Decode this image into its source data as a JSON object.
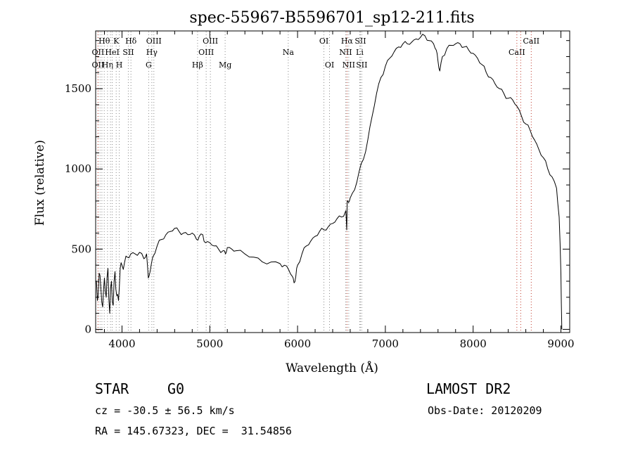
{
  "chart_data": {
    "type": "line",
    "title": "spec-55967-B5596701_sp12-211.fits",
    "xlabel": "Wavelength (Å)",
    "ylabel": "Flux (relative)",
    "xlim": [
      3700,
      9100
    ],
    "ylim": [
      -20,
      1860
    ],
    "xticks": [
      4000,
      5000,
      6000,
      7000,
      8000,
      9000
    ],
    "yticks": [
      0,
      500,
      1000,
      1500
    ],
    "grid": false,
    "series": [
      {
        "color": "#000000",
        "x": [
          3700,
          3720,
          3740,
          3760,
          3780,
          3800,
          3820,
          3840,
          3860,
          3880,
          3900,
          3920,
          3940,
          3960,
          3980,
          4000,
          4030,
          4060,
          4100,
          4150,
          4200,
          4250,
          4280,
          4300,
          4320,
          4350,
          4400,
          4450,
          4500,
          4550,
          4600,
          4650,
          4700,
          4750,
          4800,
          4850,
          4880,
          4920,
          4950,
          5000,
          5050,
          5100,
          5150,
          5180,
          5200,
          5250,
          5300,
          5400,
          5500,
          5600,
          5700,
          5800,
          5850,
          5900,
          5940,
          5960,
          5980,
          6000,
          6050,
          6100,
          6150,
          6200,
          6250,
          6300,
          6350,
          6400,
          6450,
          6500,
          6550,
          6560,
          6565,
          6580,
          6600,
          6650,
          6700,
          6750,
          6800,
          6850,
          6900,
          6950,
          7000,
          7050,
          7100,
          7150,
          7200,
          7250,
          7300,
          7350,
          7400,
          7450,
          7500,
          7550,
          7580,
          7600,
          7620,
          7650,
          7700,
          7750,
          7800,
          7850,
          7900,
          7950,
          8000,
          8050,
          8100,
          8150,
          8200,
          8250,
          8300,
          8350,
          8400,
          8450,
          8500,
          8550,
          8600,
          8650,
          8700,
          8750,
          8800,
          8850,
          8900,
          8950,
          8980,
          9000,
          9010
        ],
        "y": [
          300,
          180,
          350,
          250,
          140,
          320,
          200,
          380,
          100,
          300,
          150,
          360,
          210,
          180,
          380,
          400,
          420,
          450,
          470,
          470,
          480,
          440,
          470,
          320,
          360,
          450,
          520,
          560,
          590,
          610,
          630,
          610,
          600,
          590,
          600,
          560,
          580,
          590,
          540,
          540,
          520,
          500,
          490,
          470,
          510,
          500,
          490,
          470,
          450,
          420,
          420,
          410,
          400,
          370,
          330,
          290,
          330,
          400,
          470,
          520,
          550,
          580,
          610,
          620,
          640,
          660,
          690,
          700,
          740,
          620,
          800,
          790,
          820,
          870,
          980,
          1060,
          1180,
          1330,
          1470,
          1570,
          1640,
          1690,
          1730,
          1760,
          1780,
          1780,
          1790,
          1810,
          1820,
          1830,
          1800,
          1780,
          1740,
          1670,
          1610,
          1700,
          1750,
          1770,
          1780,
          1780,
          1760,
          1740,
          1720,
          1690,
          1650,
          1600,
          1570,
          1530,
          1500,
          1470,
          1440,
          1430,
          1390,
          1330,
          1280,
          1240,
          1180,
          1120,
          1070,
          1000,
          950,
          880,
          700,
          350,
          0
        ]
      }
    ],
    "lines": {
      "vacuum": [
        {
          "w": 3727,
          "label": "OII",
          "row": 2
        },
        {
          "w": 3750,
          "label": "",
          "row": -1
        },
        {
          "w": 3771,
          "label": "",
          "row": -1
        },
        {
          "w": 3798,
          "label": "Hθ",
          "row": 1
        },
        {
          "w": 3835,
          "label": "Hη",
          "row": 3
        },
        {
          "w": 3869,
          "label": "",
          "row": -1
        },
        {
          "w": 3889,
          "label": "HeI",
          "row": 2
        },
        {
          "w": 3934,
          "label": "K",
          "row": 1
        },
        {
          "w": 3969,
          "label": "H",
          "row": 3
        },
        {
          "w": 4072,
          "label": "SII",
          "row": 2
        },
        {
          "w": 4102,
          "label": "Hδ",
          "row": 1
        },
        {
          "w": 4304,
          "label": "G",
          "row": 3
        },
        {
          "w": 4340,
          "label": "Hγ",
          "row": 2
        },
        {
          "w": 4363,
          "label": "OIII",
          "row": 1
        },
        {
          "w": 4861,
          "label": "Hβ",
          "row": 3
        },
        {
          "w": 4959,
          "label": "OIII",
          "row": 2
        },
        {
          "w": 5007,
          "label": "OIII",
          "row": 1
        },
        {
          "w": 5175,
          "label": "Mg",
          "row": 3
        },
        {
          "w": 5894,
          "label": "Na",
          "row": 2
        },
        {
          "w": 6300,
          "label": "OI",
          "row": 1
        },
        {
          "w": 6364,
          "label": "OI",
          "row": 3
        },
        {
          "w": 6548,
          "label": "NII",
          "row": 2
        },
        {
          "w": 6563,
          "label": "Hα",
          "row": 1
        },
        {
          "w": 6583,
          "label": "NII",
          "row": 3
        },
        {
          "w": 6708,
          "label": "Li",
          "row": 2
        },
        {
          "w": 6716,
          "label": "SII",
          "row": 1
        },
        {
          "w": 6731,
          "label": "SII",
          "row": 3
        }
      ],
      "red": [
        {
          "w": 3727,
          "label": "OII",
          "row": 3
        },
        {
          "w": 6563,
          "label": "",
          "row": -1
        },
        {
          "w": 8498,
          "label": "CaII",
          "row": 2
        },
        {
          "w": 8542,
          "label": "",
          "row": -1
        },
        {
          "w": 8662,
          "label": "CaII",
          "row": 1
        }
      ]
    }
  },
  "info": {
    "class": "STAR",
    "subclass": "G0",
    "survey": "LAMOST DR2",
    "redshift": "cz = -30.5 ± 56.5 km/s",
    "obsdate": "Obs-Date: 20120209",
    "coords": "RA = 145.67323, DEC =  31.54856"
  },
  "colors": {
    "vacuum_line": "#8a8a8a",
    "red_line": "#c0392b"
  }
}
